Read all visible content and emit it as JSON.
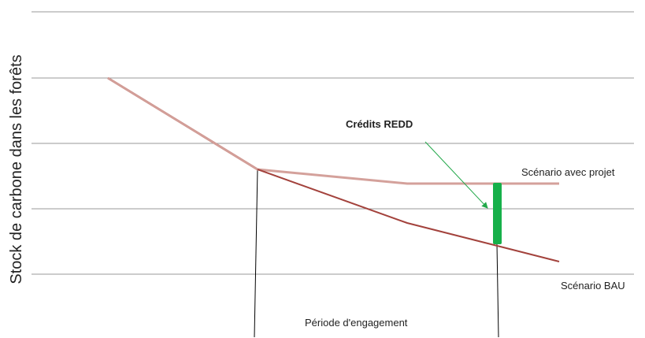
{
  "y_axis_label": "Stock de carbone dans les forêts",
  "annotations": {
    "credits": "Crédits REDD",
    "project": "Scénario avec projet",
    "bau": "Scénario BAU",
    "period": "Période d'engagement"
  }
}
